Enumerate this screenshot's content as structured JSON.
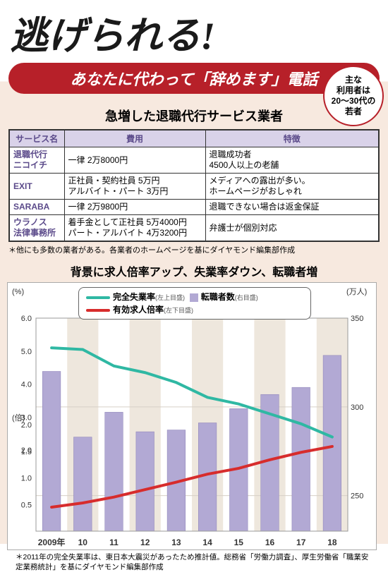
{
  "headline": "逃げられる!",
  "pill": "あなたに代わって「辞めます」電話",
  "circle_text": "主な\n利用者は\n20〜30代の\n若者",
  "section1": {
    "title": "急増した退職代行サービス業者",
    "columns": [
      "サービス名",
      "費用",
      "特徴"
    ],
    "rows": [
      {
        "svc": "退職代行\nニコイチ",
        "cost": "一律 2万8000円",
        "feat": "退職成功者\n4500人以上の老舗"
      },
      {
        "svc": "EXIT",
        "cost": "正社員・契約社員 5万円\nアルバイト・パート 3万円",
        "feat": "メディアへの露出が多い。\nホームページがおしゃれ"
      },
      {
        "svc": "SARABA",
        "cost": "一律 2万9800円",
        "feat": "退職できない場合は返金保証"
      },
      {
        "svc": "ウラノス\n法律事務所",
        "cost": "着手金として正社員 5万4000円\nパート・アルバイト 4万3200円",
        "feat": "弁護士が個別対応"
      }
    ],
    "note": "＊他にも多数の業者がある。各業者のホームページを基にダイヤモンド編集部作成"
  },
  "section2": {
    "title": "背景に求人倍率アップ、失業率ダウン、転職者増",
    "legend": {
      "unemp": {
        "label": "完全失業率",
        "note": "(左上目盛)",
        "color": "#2fb8a3"
      },
      "chg": {
        "label": "転職者数",
        "note": "(右目盛)",
        "color": "#b2a9d4"
      },
      "ratio": {
        "label": "有効求人倍率",
        "note": "(左下目盛)",
        "color": "#d72c2c"
      }
    },
    "yleft_top": {
      "unit": "(%)",
      "min": 2.0,
      "max": 6.0,
      "step": 1.0
    },
    "yleft_bot": {
      "unit": "(倍)",
      "min": 0,
      "max": 2.0,
      "step": 0.5
    },
    "yright": {
      "unit": "(万人)",
      "ticks": [
        250,
        300,
        350
      ]
    },
    "years": [
      "2009年",
      "10",
      "11",
      "12",
      "13",
      "14",
      "15",
      "16",
      "17",
      "18"
    ],
    "bars_right": [
      320,
      283,
      297,
      286,
      287,
      291,
      299,
      307,
      311,
      329
    ],
    "unemp_pct": [
      5.1,
      5.05,
      4.55,
      4.35,
      4.05,
      3.6,
      3.4,
      3.1,
      2.8,
      2.4
    ],
    "ratio": [
      0.45,
      0.53,
      0.64,
      0.78,
      0.92,
      1.07,
      1.18,
      1.34,
      1.48,
      1.59
    ],
    "colors": {
      "bar": "#b2a9d4",
      "unemp": "#2fb8a3",
      "ratio": "#d72c2c",
      "grid": "#d6d0c7",
      "band": "#eee7dd"
    },
    "note": "＊2011年の完全失業率は、東日本大震災があったため推計値。総務省「労働力調査」、厚生労働省「職業安定業務統計」を基にダイヤモンド編集部作成"
  }
}
